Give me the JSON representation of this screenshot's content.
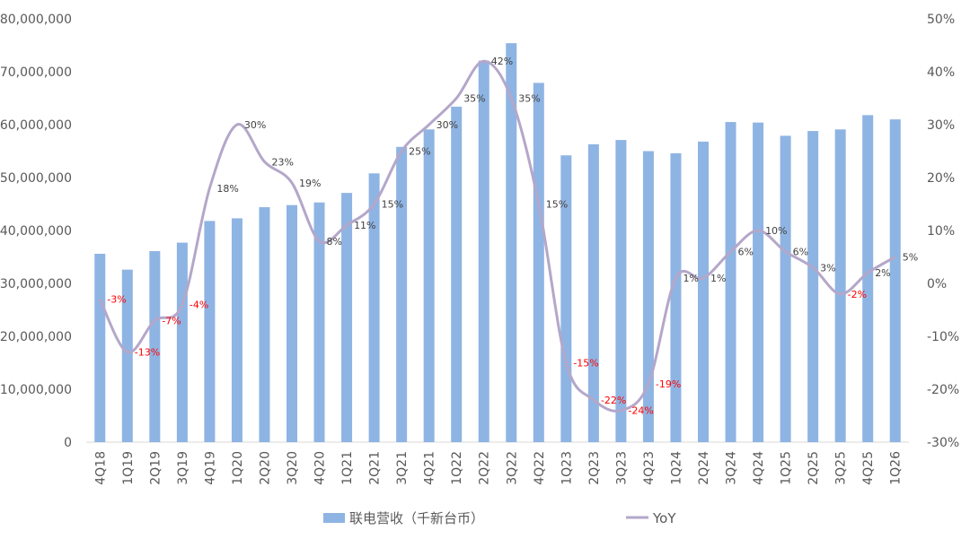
{
  "chart_data": {
    "type": "bar+line",
    "categories": [
      "4Q18",
      "1Q19",
      "2Q19",
      "3Q19",
      "4Q19",
      "1Q20",
      "2Q20",
      "3Q20",
      "4Q20",
      "1Q21",
      "2Q21",
      "3Q21",
      "4Q21",
      "1Q22",
      "2Q22",
      "3Q22",
      "4Q22",
      "1Q23",
      "2Q23",
      "3Q23",
      "4Q23",
      "1Q24",
      "2Q24",
      "3Q24",
      "4Q24",
      "1Q25",
      "2Q25",
      "3Q25",
      "4Q25",
      "1Q26"
    ],
    "series": [
      {
        "name": "联电营收（千新台币）",
        "type": "bar",
        "axis": "left",
        "color": "#8EB4E3",
        "values": [
          35600000,
          32600000,
          36100000,
          37700000,
          41800000,
          42300000,
          44400000,
          44800000,
          45300000,
          47100000,
          50800000,
          55800000,
          59100000,
          63400000,
          72100000,
          75400000,
          67900000,
          54200000,
          56300000,
          57100000,
          55000000,
          54600000,
          56800000,
          60500000,
          60400000,
          57900000,
          58800000,
          59100000,
          61800000,
          61000000
        ]
      },
      {
        "name": "YoY",
        "type": "line",
        "axis": "right",
        "color": "#B4A7C9",
        "values": [
          -3,
          -13,
          -7,
          -4,
          18,
          30,
          23,
          19,
          8,
          11,
          15,
          25,
          30,
          35,
          42,
          35,
          15,
          -15,
          -22,
          -24,
          -19,
          1,
          1,
          6,
          10,
          6,
          3,
          -2,
          2,
          5
        ],
        "labels": [
          "-3%",
          "-13%",
          "-7%",
          "-4%",
          "18%",
          "30%",
          "23%",
          "19%",
          "8%",
          "11%",
          "15%",
          "25%",
          "30%",
          "35%",
          "42%",
          "35%",
          "15%",
          "-15%",
          "-22%",
          "-24%",
          "-19%",
          "1%",
          "1%",
          "6%",
          "10%",
          "6%",
          "3%",
          "-2%",
          "2%",
          "5%"
        ]
      }
    ],
    "y_left": {
      "min": 0,
      "max": 80000000,
      "ticks": [
        0,
        10000000,
        20000000,
        30000000,
        40000000,
        50000000,
        60000000,
        70000000,
        80000000
      ],
      "tick_labels": [
        "0",
        "10,000,000",
        "20,000,000",
        "30,000,000",
        "40,000,000",
        "50,000,000",
        "60,000,000",
        "70,000,000",
        "80,000,000"
      ]
    },
    "y_right": {
      "min": -30,
      "max": 50,
      "ticks": [
        -30,
        -20,
        -10,
        0,
        10,
        20,
        30,
        40,
        50
      ],
      "tick_labels": [
        "-30%",
        "-20%",
        "-10%",
        "0%",
        "10%",
        "20%",
        "30%",
        "40%",
        "50%"
      ]
    },
    "legend": {
      "position": "bottom",
      "items": [
        {
          "label": "联电营收（千新台币）",
          "kind": "bar",
          "color": "#8EB4E3"
        },
        {
          "label": "YoY",
          "kind": "line",
          "color": "#B4A7C9"
        }
      ]
    },
    "colors": {
      "negative_label": "#FF0000",
      "positive_label": "#404040",
      "axis": "#D9D9D9",
      "tick_text": "#595959"
    },
    "grid": false
  }
}
